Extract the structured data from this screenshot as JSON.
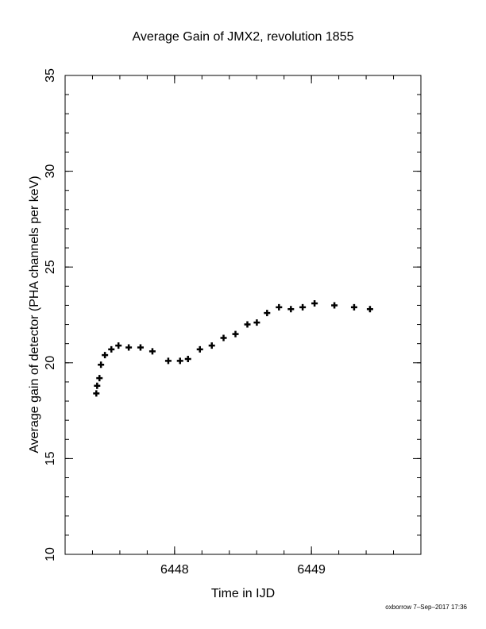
{
  "chart_data": {
    "type": "scatter",
    "title": "Average Gain of JMX2, revolution 1855",
    "xlabel": "Time in IJD",
    "ylabel": "Average gain of detector (PHA channels per keV)",
    "footer": "oxborrow  7–Sep–2017 17:36",
    "xlim": [
      6447.2,
      6449.8
    ],
    "xticks": [
      6448,
      6449
    ],
    "xminor": 0.2,
    "ylim": [
      10,
      35
    ],
    "yticks": [
      10,
      15,
      20,
      25,
      30,
      35
    ],
    "yminor": 1,
    "marker": "plus",
    "color": "#000000",
    "series": [
      {
        "x": [
          6447.428,
          6447.434,
          6447.451,
          6447.462,
          6447.491,
          6447.538,
          6447.59,
          6447.665,
          6447.751,
          6447.838,
          6447.954,
          6448.04,
          6448.098,
          6448.185,
          6448.272,
          6448.358,
          6448.445,
          6448.532,
          6448.601,
          6448.676,
          6448.763,
          6448.85,
          6448.936,
          6449.023,
          6449.168,
          6449.312,
          6449.428
        ],
        "values": [
          18.4,
          18.8,
          19.2,
          19.9,
          20.4,
          20.7,
          20.9,
          20.8,
          20.8,
          20.6,
          20.1,
          20.1,
          20.2,
          20.7,
          20.9,
          21.3,
          21.5,
          22.0,
          22.1,
          22.6,
          22.9,
          22.8,
          22.9,
          23.1,
          23.0,
          22.9,
          22.8
        ]
      }
    ]
  }
}
